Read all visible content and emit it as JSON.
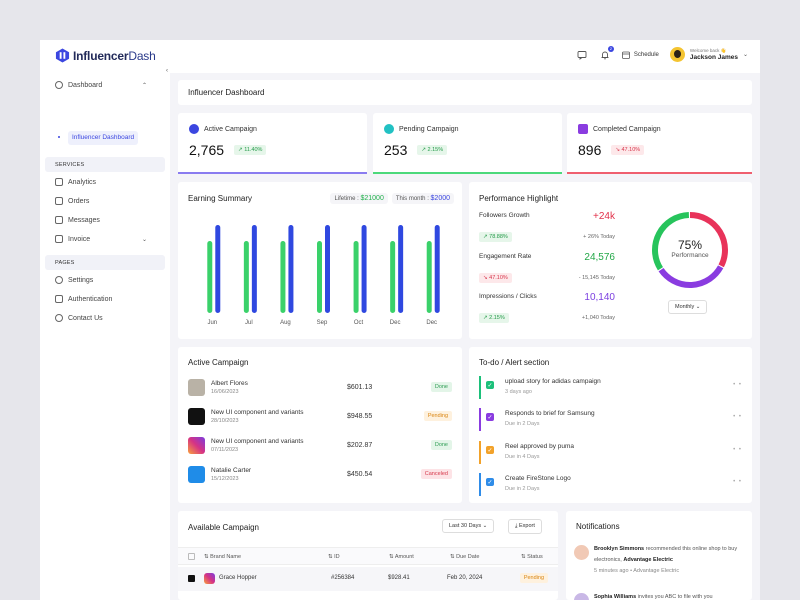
{
  "app": {
    "name_part1": "Influencer",
    "name_part2": "Dash"
  },
  "header": {
    "schedule_label": "Schedule",
    "notif_badge": "2",
    "welcome": "Welcome back 👋",
    "user_name": "Jackson James"
  },
  "sidebar": {
    "dashboard": "Dashboard",
    "sub_active": "Influencer Dashboard",
    "services_head": "SERVICES",
    "services": [
      "Analytics",
      "Orders",
      "Messages",
      "Invoice"
    ],
    "pages_head": "PAGES",
    "pages": [
      "Settings",
      "Authentication",
      "Contact Us"
    ]
  },
  "page_title": "Influencer Dashboard",
  "stats": [
    {
      "label": "Active Campaign",
      "value": "2,765",
      "change": "11.40%",
      "trend": "up",
      "color": "#3b46e0"
    },
    {
      "label": "Pending Campaign",
      "value": "253",
      "change": "2.15%",
      "trend": "up",
      "color": "#22c1c3"
    },
    {
      "label": "Completed Campaign",
      "value": "896",
      "change": "47.10%",
      "trend": "down",
      "color": "#8a3ce0"
    }
  ],
  "earning": {
    "title": "Earning Summary",
    "lifetime_label": "Lifetime :",
    "lifetime_value": "$21000",
    "month_label": "This month :",
    "month_value": "$2000"
  },
  "chart_data": {
    "type": "bar",
    "categories": [
      "Jun",
      "Jul",
      "Aug",
      "Sep",
      "Oct",
      "Dec",
      "Dec"
    ],
    "series": [
      {
        "values": [
          72,
          72,
          72,
          72,
          72,
          72,
          72
        ]
      },
      {
        "values": [
          88,
          88,
          88,
          88,
          88,
          88,
          88
        ]
      }
    ],
    "colors": [
      "#3ad16a",
      "#2f48e0"
    ],
    "ylim": [
      0,
      100
    ],
    "grid": false
  },
  "performance": {
    "title": "Performance Highlight",
    "rows": [
      {
        "name": "Followers Growth",
        "value": "+24k",
        "value_color": "#e2324b",
        "pill": "78.88%",
        "trend": "up",
        "sub": "+ 26% Today"
      },
      {
        "name": "Engagement Rate",
        "value": "24,576",
        "value_color": "#22a747",
        "pill": "47.10%",
        "trend": "down",
        "sub": "- 15,145 Today"
      },
      {
        "name": "Impressions / Clicks",
        "value": "10,140",
        "value_color": "#7b3fe0",
        "pill": "2.15%",
        "trend": "up",
        "sub": "+1,040 Today"
      }
    ],
    "donut_value": "75%",
    "donut_fraction": 0.75,
    "donut_label": "Performance",
    "period": "Monthly"
  },
  "active_campaign": {
    "title": "Active Campaign",
    "rows": [
      {
        "title": "Albert Flores",
        "date": "16/06/2023",
        "amount": "$601.13",
        "status": "Done",
        "status_kind": "done",
        "ico": "#b9b2a6"
      },
      {
        "title": "New UI component and variants",
        "date": "28/10/2023",
        "amount": "$948.55",
        "status": "Pending",
        "status_kind": "pend",
        "ico": "#111111"
      },
      {
        "title": "New UI component and variants",
        "date": "07/11/2023",
        "amount": "$202.87",
        "status": "Done",
        "status_kind": "done",
        "ico": "#d63384"
      },
      {
        "title": "Natalie Carter",
        "date": "15/12/2023",
        "amount": "$450.54",
        "status": "Canceled",
        "status_kind": "canc",
        "ico": "#1f8ce8"
      }
    ]
  },
  "todo": {
    "title": "To-do / Alert section",
    "rows": [
      {
        "title": "upload story for adidas campaign",
        "sub": "3 days ago",
        "color": "#1cc07a"
      },
      {
        "title": "Responds to brief for Samsung",
        "sub": "Due in 2 Days",
        "color": "#8a3ce0"
      },
      {
        "title": "Reel approved by puma",
        "sub": "Due in 4 Days",
        "color": "#f2a22a"
      },
      {
        "title": "Create FireStone Logo",
        "sub": "Due in 2 Days",
        "color": "#2f8ce8"
      }
    ]
  },
  "available": {
    "title": "Available Campaign",
    "filter": "Last 30 Days",
    "export": "Export",
    "columns": [
      "Brand Name",
      "ID",
      "Amount",
      "Due Date",
      "Status"
    ],
    "row": {
      "brand": "Grace Hopper",
      "id": "#256384",
      "amount": "$928.41",
      "due": "Feb 20, 2024",
      "status": "Pending"
    }
  },
  "notifications": {
    "title": "Notifications",
    "items": [
      {
        "name": "Brooklyn Simmons",
        "text": " recommended this online shop to buy electronics, ",
        "target": "Advantage Electric",
        "time": "5 minutes ago",
        "source": "Advantage Electric"
      },
      {
        "name": "Sophia Williams",
        "text": " invites you ABC to file with you",
        "target": "",
        "time": "",
        "source": ""
      }
    ]
  }
}
